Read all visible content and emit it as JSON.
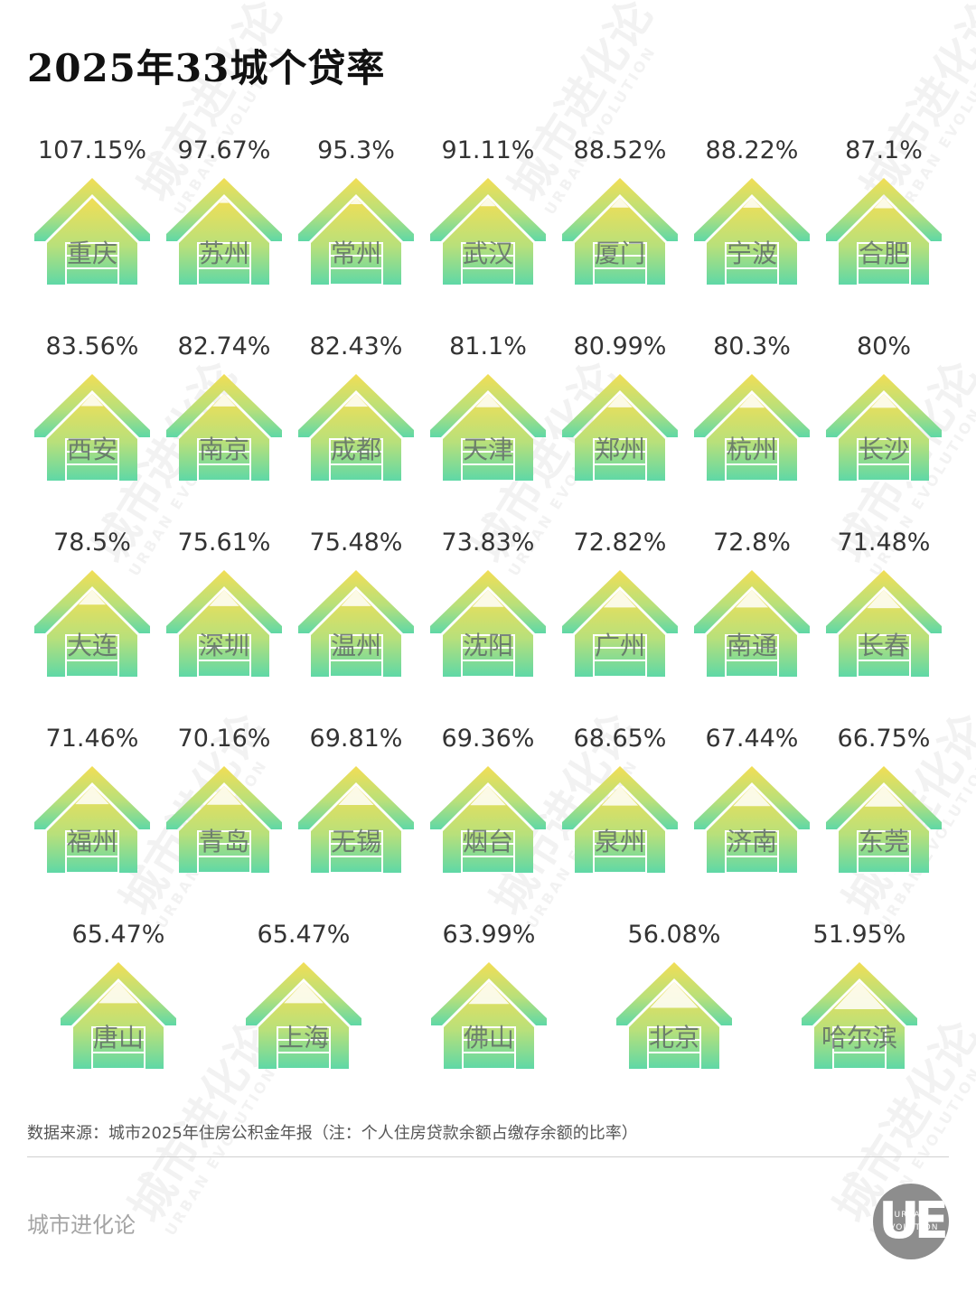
{
  "title": "2025年33城个贷率",
  "source_note": "数据来源：城市2025年住房公积金年报（注：个人住房贷款余额占缴存余额的比率）",
  "brand": {
    "name": "城市进化论",
    "logo_letters": "UE",
    "logo_text_1": "URBAN",
    "logo_text_2": "EVOLUTION"
  },
  "watermark": {
    "text": "城市进化论",
    "subtext": "URBAN EVOLUTION"
  },
  "colors": {
    "house_top": "#f2de55",
    "house_mid": "#b9e07a",
    "house_bottom": "#5fd8a6",
    "text": "#333333"
  },
  "chart_data": {
    "type": "pictograph",
    "unit": "%",
    "title": "2025年33城个贷率",
    "categories": [
      "重庆",
      "苏州",
      "常州",
      "武汉",
      "厦门",
      "宁波",
      "合肥",
      "西安",
      "南京",
      "成都",
      "天津",
      "郑州",
      "杭州",
      "长沙",
      "大连",
      "深圳",
      "温州",
      "沈阳",
      "广州",
      "南通",
      "长春",
      "福州",
      "青岛",
      "无锡",
      "烟台",
      "泉州",
      "济南",
      "东莞",
      "唐山",
      "上海",
      "佛山",
      "北京",
      "哈尔滨"
    ],
    "labels": [
      "107.15%",
      "97.67%",
      "95.3%",
      "91.11%",
      "88.52%",
      "88.22%",
      "87.1%",
      "83.56%",
      "82.74%",
      "82.43%",
      "81.1%",
      "80.99%",
      "80.3%",
      "80%",
      "78.5%",
      "75.61%",
      "75.48%",
      "73.83%",
      "72.82%",
      "72.8%",
      "71.48%",
      "71.46%",
      "70.16%",
      "69.81%",
      "69.36%",
      "68.65%",
      "67.44%",
      "66.75%",
      "65.47%",
      "65.47%",
      "63.99%",
      "56.08%",
      "51.95%"
    ],
    "values": [
      107.15,
      97.67,
      95.3,
      91.11,
      88.52,
      88.22,
      87.1,
      83.56,
      82.74,
      82.43,
      81.1,
      80.99,
      80.3,
      80,
      78.5,
      75.61,
      75.48,
      73.83,
      72.82,
      72.8,
      71.48,
      71.46,
      70.16,
      69.81,
      69.36,
      68.65,
      67.44,
      66.75,
      65.47,
      65.47,
      63.99,
      56.08,
      51.95
    ]
  }
}
